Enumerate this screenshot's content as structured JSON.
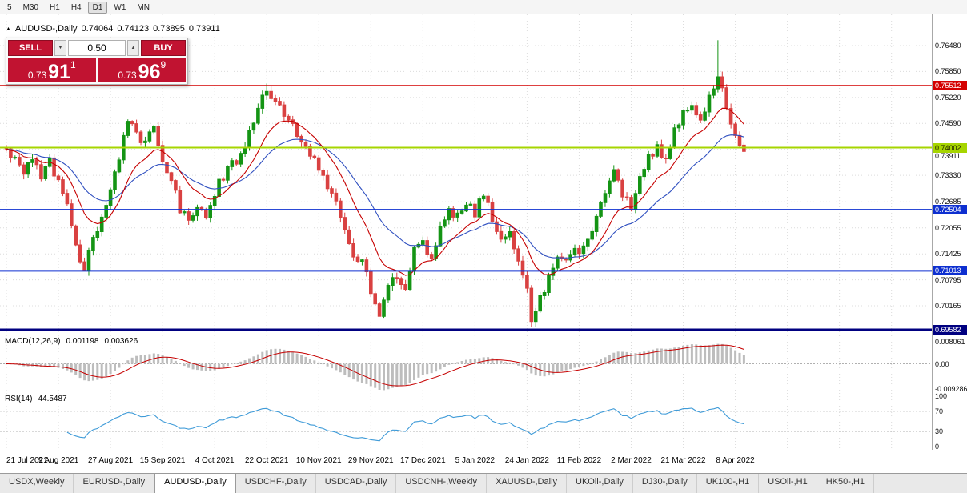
{
  "ui_colors": {
    "trade_red": "#c11331"
  },
  "toolbar": {
    "timeframes": [
      {
        "label": "5",
        "active": false
      },
      {
        "label": "M30",
        "active": false
      },
      {
        "label": "H1",
        "active": false
      },
      {
        "label": "H4",
        "active": false
      },
      {
        "label": "D1",
        "active": true
      },
      {
        "label": "W1",
        "active": false
      },
      {
        "label": "MN",
        "active": false
      }
    ]
  },
  "chart_header": {
    "marker": "▲",
    "symbol": "AUDUSD-,Daily",
    "open": "0.74064",
    "high": "0.74123",
    "low": "0.73895",
    "close": "0.73911"
  },
  "trade_panel": {
    "sell_label": "SELL",
    "buy_label": "BUY",
    "volume": "0.50",
    "spin_down": "▼",
    "spin_up": "▲",
    "sell_price": {
      "main": "0.73",
      "pips": "91",
      "pt": "1"
    },
    "buy_price": {
      "main": "0.73",
      "pips": "96",
      "pt": "9"
    }
  },
  "price_axis": {
    "ticks": [
      {
        "label": "0.76480",
        "value": 0.7648,
        "visible": true
      },
      {
        "label": "0.75850",
        "value": 0.7585,
        "visible": true
      },
      {
        "label": "0.75220",
        "value": 0.7522,
        "visible": true
      },
      {
        "label": "0.74590",
        "value": 0.7459,
        "visible": true
      },
      {
        "label": "0.73960",
        "value": 0.7396,
        "visible": false
      },
      {
        "label": "0.73330",
        "value": 0.7333,
        "visible": true
      },
      {
        "label": "0.72685",
        "value": 0.72685,
        "visible": true
      },
      {
        "label": "0.72055",
        "value": 0.72055,
        "visible": true
      },
      {
        "label": "0.71425",
        "value": 0.71425,
        "visible": true
      },
      {
        "label": "0.70795",
        "value": 0.70795,
        "visible": true
      },
      {
        "label": "0.70165",
        "value": 0.70165,
        "visible": true
      }
    ],
    "current_price": {
      "label": "0.73911",
      "value": 0.73911
    }
  },
  "macd": {
    "title": "MACD(12,26,9)",
    "value1": "0.001198",
    "value2": "0.003626",
    "axis_labels": [
      {
        "label": "0.008061",
        "value": 0.008061
      },
      {
        "label": "0.00",
        "value": 0
      },
      {
        "label": "-0.009286",
        "value": -0.009286
      }
    ]
  },
  "rsi": {
    "title": "RSI(14)",
    "value": "44.5487",
    "axis_labels": [
      {
        "label": "100",
        "value": 100
      },
      {
        "label": "70",
        "value": 70
      },
      {
        "label": "30",
        "value": 30
      },
      {
        "label": "0",
        "value": 0
      }
    ],
    "levels": [
      70,
      30
    ]
  },
  "date_axis": {
    "labels": [
      "21 Jul 2021",
      "9 Aug 2021",
      "27 Aug 2021",
      "15 Sep 2021",
      "4 Oct 2021",
      "22 Oct 2021",
      "10 Nov 2021",
      "29 Nov 2021",
      "17 Dec 2021",
      "5 Jan 2022",
      "24 Jan 2022",
      "11 Feb 2022",
      "2 Mar 2022",
      "21 Mar 2022",
      "8 Apr 2022"
    ]
  },
  "tabs": [
    {
      "label": "USDX,Weekly",
      "active": false
    },
    {
      "label": "EURUSD-,Daily",
      "active": false
    },
    {
      "label": "AUDUSD-,Daily",
      "active": true
    },
    {
      "label": "USDCHF-,Daily",
      "active": false
    },
    {
      "label": "USDCAD-,Daily",
      "active": false
    },
    {
      "label": "USDCNH-,Weekly",
      "active": false
    },
    {
      "label": "XAUUSD-,Daily",
      "active": false
    },
    {
      "label": "UKOil-,Daily",
      "active": false
    },
    {
      "label": "DJ30-,Daily",
      "active": false
    },
    {
      "label": "UK100-,H1",
      "active": false
    },
    {
      "label": "USOil-,H1",
      "active": false
    },
    {
      "label": "HK50-,H1",
      "active": false
    }
  ],
  "chart_data": {
    "type": "candlestick",
    "symbol": "AUDUSD-",
    "timeframe": "Daily",
    "ohlc_current": {
      "open": 0.74064,
      "high": 0.74123,
      "low": 0.73895,
      "close": 0.73911
    },
    "y_range": [
      0.69466,
      0.77238
    ],
    "x_tick_labels": [
      "21 Jul 2021",
      "9 Aug 2021",
      "27 Aug 2021",
      "15 Sep 2021",
      "4 Oct 2021",
      "22 Oct 2021",
      "10 Nov 2021",
      "29 Nov 2021",
      "17 Dec 2021",
      "5 Jan 2022",
      "24 Jan 2022",
      "11 Feb 2022",
      "2 Mar 2022",
      "21 Mar 2022",
      "8 Apr 2022"
    ],
    "price_path_anchors": [
      [
        0,
        0.74
      ],
      [
        2,
        0.7372
      ],
      [
        4,
        0.7344
      ],
      [
        6,
        0.7366
      ],
      [
        8,
        0.7332
      ],
      [
        10,
        0.7366
      ],
      [
        12,
        0.7318
      ],
      [
        14,
        0.7252
      ],
      [
        16,
        0.716
      ],
      [
        18,
        0.7108
      ],
      [
        20,
        0.7178
      ],
      [
        23,
        0.7262
      ],
      [
        25,
        0.733
      ],
      [
        27,
        0.7428
      ],
      [
        28,
        0.7472
      ],
      [
        30,
        0.743
      ],
      [
        32,
        0.7408
      ],
      [
        34,
        0.745
      ],
      [
        36,
        0.7372
      ],
      [
        38,
        0.732
      ],
      [
        40,
        0.725
      ],
      [
        42,
        0.7216
      ],
      [
        44,
        0.7262
      ],
      [
        46,
        0.7228
      ],
      [
        48,
        0.7292
      ],
      [
        51,
        0.735
      ],
      [
        54,
        0.7382
      ],
      [
        57,
        0.7468
      ],
      [
        59,
        0.753
      ],
      [
        60,
        0.7542
      ],
      [
        62,
        0.7518
      ],
      [
        64,
        0.7482
      ],
      [
        66,
        0.7452
      ],
      [
        68,
        0.7402
      ],
      [
        70,
        0.7382
      ],
      [
        72,
        0.7352
      ],
      [
        74,
        0.7302
      ],
      [
        76,
        0.727
      ],
      [
        78,
        0.72
      ],
      [
        80,
        0.7142
      ],
      [
        82,
        0.713
      ],
      [
        84,
        0.7058
      ],
      [
        86,
        0.7002
      ],
      [
        88,
        0.706
      ],
      [
        90,
        0.7088
      ],
      [
        92,
        0.7068
      ],
      [
        94,
        0.7148
      ],
      [
        96,
        0.717
      ],
      [
        98,
        0.7132
      ],
      [
        100,
        0.72
      ],
      [
        102,
        0.725
      ],
      [
        104,
        0.723
      ],
      [
        106,
        0.7262
      ],
      [
        108,
        0.724
      ],
      [
        110,
        0.729
      ],
      [
        112,
        0.7222
      ],
      [
        114,
        0.7172
      ],
      [
        116,
        0.719
      ],
      [
        118,
        0.713
      ],
      [
        120,
        0.7048
      ],
      [
        121,
        0.6986
      ],
      [
        123,
        0.703
      ],
      [
        125,
        0.709
      ],
      [
        127,
        0.714
      ],
      [
        129,
        0.712
      ],
      [
        131,
        0.715
      ],
      [
        133,
        0.716
      ],
      [
        135,
        0.72
      ],
      [
        137,
        0.727
      ],
      [
        139,
        0.733
      ],
      [
        140,
        0.735
      ],
      [
        142,
        0.729
      ],
      [
        144,
        0.7262
      ],
      [
        146,
        0.733
      ],
      [
        148,
        0.738
      ],
      [
        150,
        0.74
      ],
      [
        152,
        0.7372
      ],
      [
        154,
        0.744
      ],
      [
        156,
        0.748
      ],
      [
        158,
        0.75
      ],
      [
        160,
        0.7476
      ],
      [
        162,
        0.752
      ],
      [
        164,
        0.758
      ],
      [
        165,
        0.755
      ],
      [
        166,
        0.749
      ],
      [
        167,
        0.7462
      ],
      [
        168,
        0.7432
      ],
      [
        169,
        0.7408
      ],
      [
        170,
        0.7391
      ]
    ],
    "wick_overrides": [
      {
        "i": 18,
        "low": 0.71
      },
      {
        "i": 60,
        "high": 0.7556
      },
      {
        "i": 86,
        "low": 0.6993
      },
      {
        "i": 121,
        "low": 0.6966
      },
      {
        "i": 164,
        "high": 0.7661
      }
    ],
    "levels": [
      {
        "label": "0.75512",
        "value": 0.75512,
        "color": "#d40000",
        "text_color": "#ffffff",
        "width": 1
      },
      {
        "label": "0.74002",
        "value": 0.74002,
        "color": "#a6d500",
        "text_color": "#1a1a00",
        "width": 2
      },
      {
        "label": "0.72504",
        "value": 0.72504,
        "color": "#0d2fd0",
        "text_color": "#ffffff",
        "width": 1
      },
      {
        "label": "0.71013",
        "value": 0.71013,
        "color": "#0d2fd0",
        "text_color": "#ffffff",
        "width": 2
      },
      {
        "label": "0.69582",
        "value": 0.69582,
        "color": "#000080",
        "text_color": "#ffffff",
        "width": 3
      }
    ],
    "indicators": {
      "macd": {
        "params": [
          12,
          26,
          9
        ],
        "current": [
          0.001198,
          0.003626
        ],
        "axis_values": [
          0.008061,
          0,
          -0.009286
        ]
      },
      "rsi": {
        "period": 14,
        "current": 44.5487,
        "levels": [
          70,
          30
        ],
        "axis_values": [
          100,
          70,
          30,
          0
        ]
      }
    },
    "colors": {
      "up": "#149414",
      "down": "#d94141",
      "ma_fast": "#c60000",
      "ma_slow": "#3050c0",
      "macd_histogram": "#bdbdbd",
      "macd_signal": "#c60000",
      "rsi_line": "#3f9bd8",
      "grid": "#dcdcdc"
    }
  }
}
